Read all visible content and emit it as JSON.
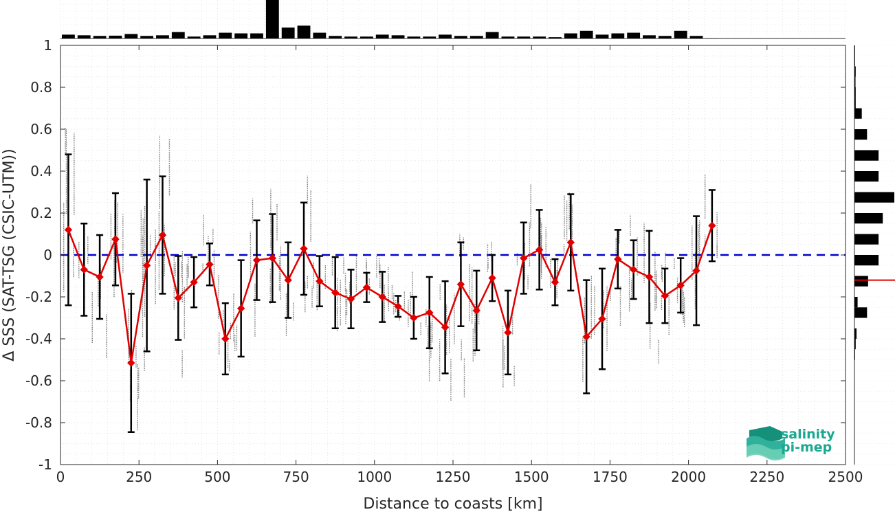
{
  "chart_data": {
    "type": "scatter",
    "xlabel": "Distance to coasts [km]",
    "ylabel": "Δ SSS (SAT-TSG (CSIC-UTM))",
    "xlim": [
      0,
      2500
    ],
    "ylim": [
      -1,
      1
    ],
    "x_ticks": [
      "0",
      "250",
      "500",
      "750",
      "1000",
      "1250",
      "1500",
      "1750",
      "2000",
      "2250",
      "2500"
    ],
    "y_ticks": [
      "-1",
      "-0.8",
      "-0.6",
      "-0.4",
      "-0.2",
      "0",
      "0.2",
      "0.4",
      "0.6",
      "0.8",
      "1"
    ],
    "grid": true,
    "reference_line": 0,
    "colors": {
      "mean": "#e00000",
      "error": "#000000",
      "reference": "#0000cc",
      "scatter": "#7f7f7f"
    },
    "series": [
      {
        "x": [
          25,
          75,
          125,
          175,
          225,
          275,
          325,
          375,
          425,
          475,
          525,
          575,
          625,
          675,
          725,
          775,
          825,
          875,
          925,
          975,
          1025,
          1075,
          1125,
          1175,
          1225,
          1275,
          1325,
          1375,
          1425,
          1475,
          1525,
          1575,
          1625,
          1675,
          1725,
          1775,
          1825,
          1875,
          1925,
          1975,
          2025,
          2075
        ],
        "mean": [
          0.12,
          -0.07,
          -0.105,
          0.075,
          -0.515,
          -0.05,
          0.095,
          -0.205,
          -0.13,
          -0.045,
          -0.4,
          -0.255,
          -0.025,
          -0.015,
          -0.12,
          0.03,
          -0.125,
          -0.18,
          -0.21,
          -0.155,
          -0.2,
          -0.245,
          -0.3,
          -0.275,
          -0.345,
          -0.14,
          -0.265,
          -0.11,
          -0.37,
          -0.015,
          0.025,
          -0.13,
          0.06,
          -0.39,
          -0.305,
          -0.02,
          -0.07,
          -0.105,
          -0.195,
          -0.145,
          -0.075,
          0.14
        ],
        "std": [
          0.36,
          0.22,
          0.2,
          0.22,
          0.33,
          0.41,
          0.28,
          0.2,
          0.12,
          0.1,
          0.17,
          0.23,
          0.19,
          0.21,
          0.18,
          0.22,
          0.12,
          0.17,
          0.14,
          0.07,
          0.12,
          0.05,
          0.1,
          0.17,
          0.22,
          0.2,
          0.19,
          0.11,
          0.2,
          0.17,
          0.19,
          0.11,
          0.23,
          0.27,
          0.24,
          0.14,
          0.14,
          0.22,
          0.13,
          0.13,
          0.26,
          0.17
        ]
      }
    ],
    "top_histogram": {
      "counts": [
        3,
        2.5,
        2,
        2.2,
        3.5,
        2,
        2.5,
        5,
        1.5,
        2.5,
        4.5,
        4,
        4,
        30,
        8.5,
        10,
        4.5,
        2,
        1.5,
        1.5,
        3,
        2.5,
        1.5,
        1.5,
        3,
        2,
        2,
        5,
        1.5,
        1.5,
        1.5,
        1,
        4,
        6,
        3,
        4,
        4.5,
        2.5,
        2,
        6,
        2,
        0.3,
        0,
        0,
        0,
        0,
        0,
        0,
        0,
        0
      ]
    },
    "right_histogram": {
      "edges_start": -1,
      "bin_width": 0.05,
      "counts": [
        0,
        0,
        0,
        0,
        0,
        0,
        0,
        0,
        0,
        0,
        0.3,
        0.6,
        1,
        0,
        6,
        1.5,
        0,
        6.5,
        0,
        11.5,
        0,
        11.5,
        0,
        13.5,
        0,
        19,
        0,
        11.5,
        0,
        11.5,
        0,
        6,
        0,
        3.5,
        0.6,
        0.6,
        0.5,
        0.6,
        0.3,
        0.3
      ],
      "median": -0.12
    }
  },
  "logo": {
    "line1": "salinity",
    "line2": "pi-mep"
  }
}
